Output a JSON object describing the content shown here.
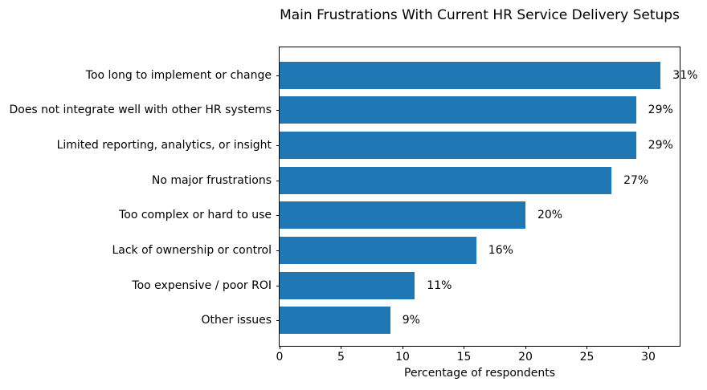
{
  "chart_data": {
    "type": "bar",
    "orientation": "horizontal",
    "title": "Main Frustrations With Current HR Service Delivery Setups",
    "xlabel": "Percentage of respondents",
    "ylabel": "",
    "categories": [
      "Too long to implement or change",
      "Does not integrate well with other HR systems",
      "Limited reporting, analytics, or insight",
      "No major frustrations",
      "Too complex or hard to use",
      "Lack of ownership or control",
      "Too expensive / poor ROI",
      "Other issues"
    ],
    "values": [
      31,
      29,
      29,
      27,
      20,
      16,
      11,
      9
    ],
    "value_labels": [
      "31%",
      "29%",
      "29%",
      "27%",
      "20%",
      "16%",
      "11%",
      "9%"
    ],
    "xlim": [
      0,
      32.55
    ],
    "xticks": [
      0,
      5,
      10,
      15,
      20,
      25,
      30
    ],
    "xtick_labels": [
      "0",
      "5",
      "10",
      "15",
      "20",
      "25",
      "30"
    ],
    "bar_color": "#1f77b4",
    "text_color": "#000000",
    "background_color": "#ffffff",
    "grid": false,
    "legend": null
  }
}
